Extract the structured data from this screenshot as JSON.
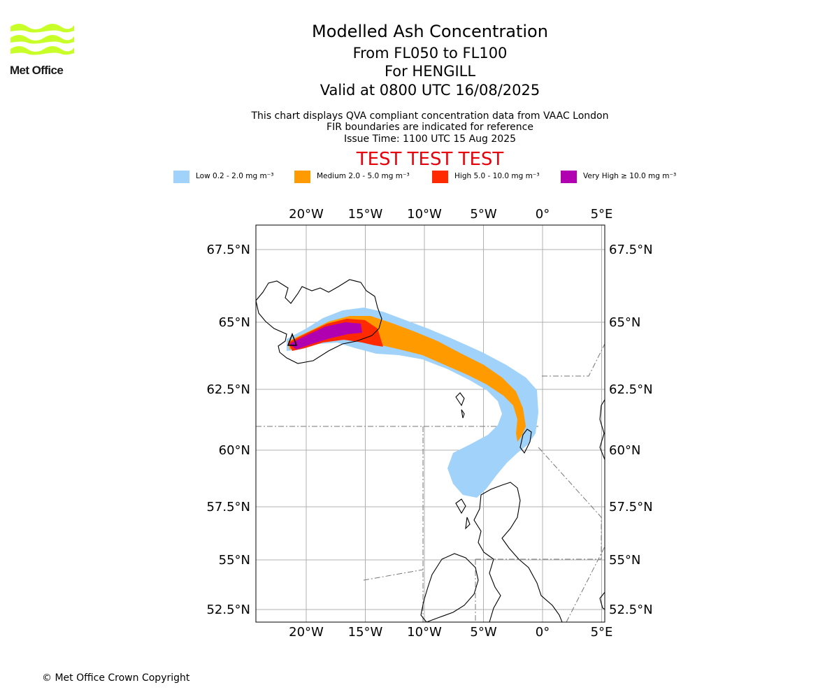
{
  "logo": {
    "text": "Met Office",
    "color": "#c8ff28"
  },
  "header": {
    "title": "Modelled Ash Concentration",
    "level": "From FL050 to FL100",
    "volcano": "For HENGILL",
    "valid": "Valid at 0800 UTC 16/08/2025",
    "note_1": "This chart displays QVA compliant concentration data from VAAC London",
    "note_2": "FIR boundaries are indicated for reference",
    "issue_time": "Issue Time: 1100 UTC 15 Aug 2025",
    "test_banner": "TEST TEST TEST",
    "test_color": "#e8000b"
  },
  "legend": [
    {
      "label": "Low 0.2 - 2.0 mg m⁻³",
      "color": "#a0d2fa"
    },
    {
      "label": "Medium 2.0 - 5.0 mg m⁻³",
      "color": "#ff9a00"
    },
    {
      "label": "High 5.0 - 10.0 mg m⁻³",
      "color": "#ff2a00"
    },
    {
      "label": "Very High ≥ 10.0 mg m⁻³",
      "color": "#b000b0"
    }
  ],
  "map": {
    "lon_ticks": [
      {
        "lon": -20,
        "label": "20°W"
      },
      {
        "lon": -15,
        "label": "15°W"
      },
      {
        "lon": -10,
        "label": "10°W"
      },
      {
        "lon": -5,
        "label": "5°W"
      },
      {
        "lon": 0,
        "label": "0°"
      },
      {
        "lon": 5,
        "label": "5°E"
      }
    ],
    "lat_ticks": [
      {
        "lat": 67.5,
        "label": "67.5°N"
      },
      {
        "lat": 65,
        "label": "65°N"
      },
      {
        "lat": 62.5,
        "label": "62.5°N"
      },
      {
        "lat": 60,
        "label": "60°N"
      },
      {
        "lat": 57.5,
        "label": "57.5°N"
      },
      {
        "lat": 55,
        "label": "55°N"
      },
      {
        "lat": 52.5,
        "label": "52.5°N"
      }
    ],
    "gridlines": true,
    "volcano_marker": "triangle-icon"
  },
  "footer": {
    "copyright": "© Met Office Crown Copyright"
  }
}
